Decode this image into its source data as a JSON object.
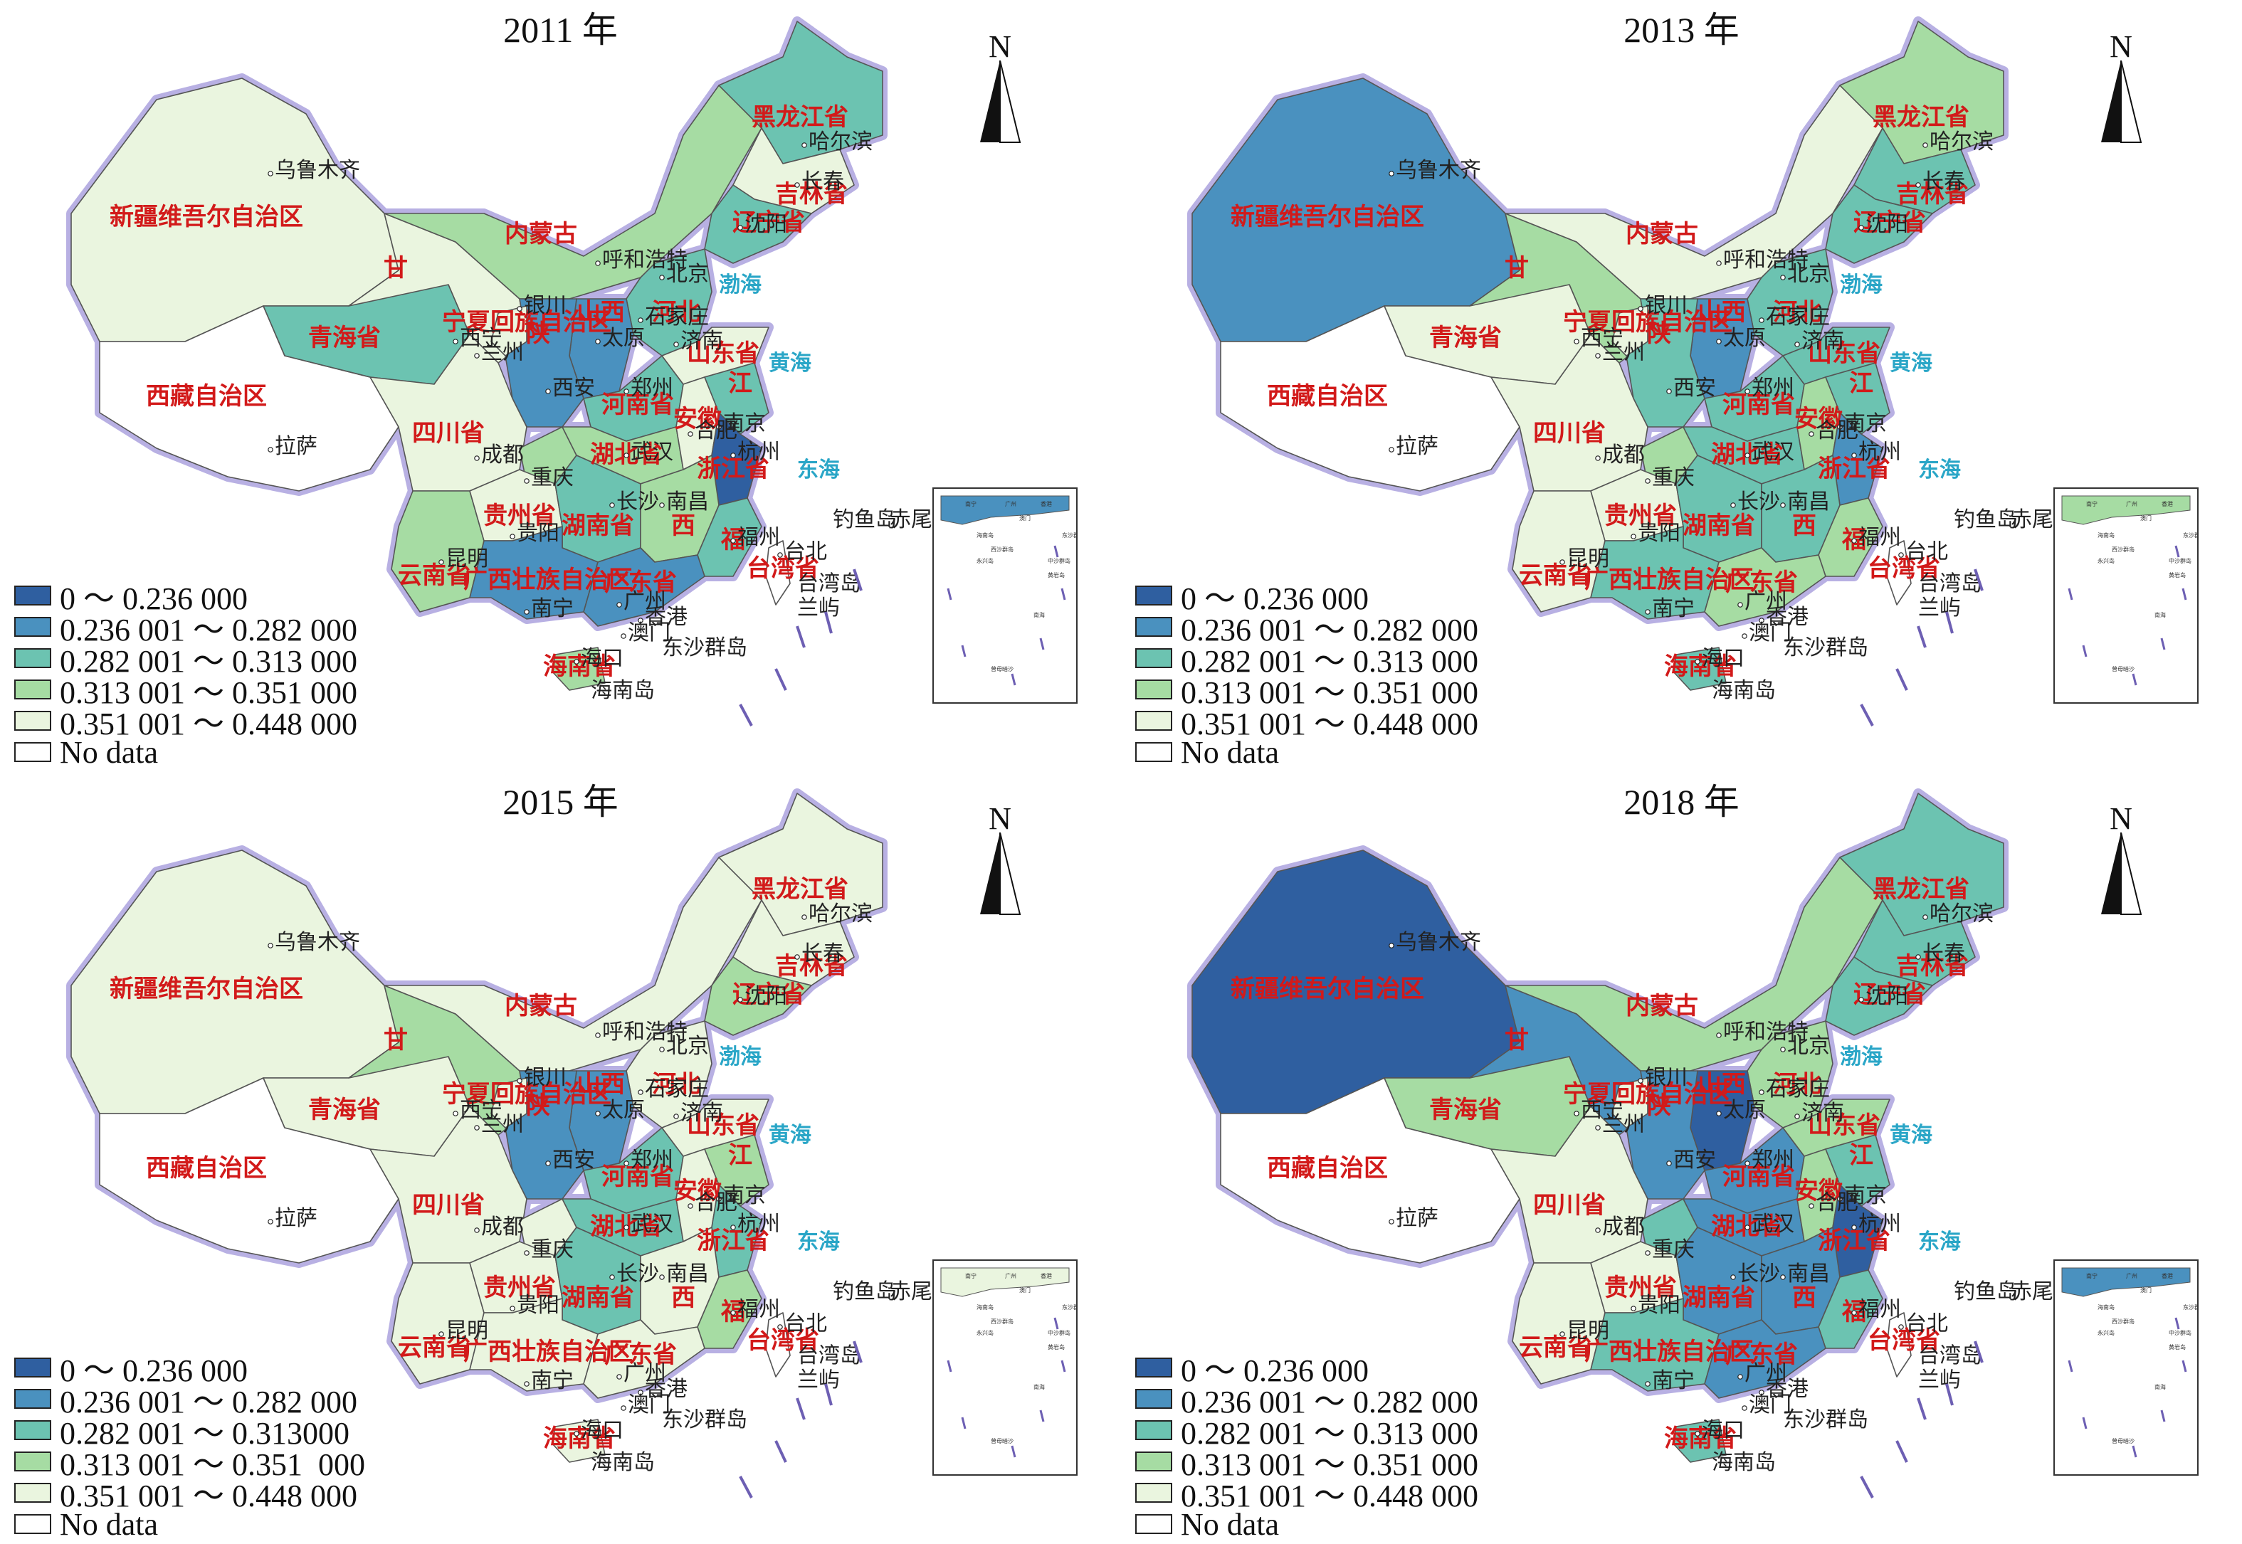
{
  "colors": {
    "c1": "#2f5fa0",
    "c2": "#4a91bf",
    "c3": "#6cc3b1",
    "c4": "#a6dca3",
    "c5": "#eaf5df",
    "nodata": "#ffffff",
    "border": "#6d5fb3",
    "sea": "#2aa6c7",
    "label": "#d21a1a"
  },
  "north_label": "N",
  "panels": [
    {
      "title": "2011 年",
      "legend": [
        {
          "class": "c1",
          "label": "0 ～ 0.236 000"
        },
        {
          "class": "c2",
          "label": "0.236 001 ～ 0.282 000"
        },
        {
          "class": "c3",
          "label": "0.282 001 ～ 0.313 000"
        },
        {
          "class": "c4",
          "label": "0.313 001 ～ 0.351 000"
        },
        {
          "class": "c5",
          "label": "0.351 001 ～ 0.448 000"
        },
        {
          "class": "nodata",
          "label": "No data"
        }
      ],
      "regions": {
        "xinjiang": "c5",
        "xizang": "nodata",
        "qinghai": "c3",
        "gansu": "c5",
        "neimenggu": "c4",
        "heilongjiang": "c3",
        "jilin": "c5",
        "liaoning": "c3",
        "beijing": "c1",
        "hebei": "c3",
        "shanxi": "c2",
        "shaanxi": "c2",
        "ningxia": "c5",
        "henan": "c3",
        "shandong": "c5",
        "sichuan": "c5",
        "chongqing": "c4",
        "hubei": "c4",
        "anhui": "c5",
        "jiangsu": "c3",
        "zhejiang": "c1",
        "yunnan": "c4",
        "guizhou": "c5",
        "hunan": "c3",
        "jiangxi": "c4",
        "fujian": "c3",
        "guangxi": "c2",
        "guangdong": "c2",
        "hainan": "c4",
        "taiwan": "nodata"
      }
    },
    {
      "title": "2013 年",
      "legend": [
        {
          "class": "c1",
          "label": "0 ～ 0.236 000"
        },
        {
          "class": "c2",
          "label": "0.236 001 ～ 0.282 000"
        },
        {
          "class": "c3",
          "label": "0.282 001 ～ 0.313 000"
        },
        {
          "class": "c4",
          "label": "0.313 001 ～ 0.351 000"
        },
        {
          "class": "c5",
          "label": "0.351 001 ～ 0.448 000"
        },
        {
          "class": "nodata",
          "label": "No data"
        }
      ],
      "regions": {
        "xinjiang": "c2",
        "xizang": "nodata",
        "qinghai": "c5",
        "gansu": "c4",
        "neimenggu": "c5",
        "heilongjiang": "c4",
        "jilin": "c3",
        "liaoning": "c3",
        "beijing": "c1",
        "hebei": "c3",
        "shanxi": "c2",
        "shaanxi": "c3",
        "ningxia": "c5",
        "henan": "c3",
        "shandong": "c3",
        "sichuan": "c5",
        "chongqing": "c4",
        "hubei": "c3",
        "anhui": "c4",
        "jiangsu": "c3",
        "zhejiang": "c2",
        "yunnan": "c5",
        "guizhou": "c5",
        "hunan": "c3",
        "jiangxi": "c3",
        "fujian": "c4",
        "guangxi": "c3",
        "guangdong": "c4",
        "hainan": "c3",
        "taiwan": "nodata"
      }
    },
    {
      "title": "2015 年",
      "legend": [
        {
          "class": "c1",
          "label": "0 ～ 0.236 000"
        },
        {
          "class": "c2",
          "label": "0.236 001 ～ 0.282 000"
        },
        {
          "class": "c3",
          "label": "0.282 001 ～ 0.313000"
        },
        {
          "class": "c4",
          "label": "0.313 001 ～ 0.351  000"
        },
        {
          "class": "c5",
          "label": "0.351 001 ～ 0.448 000"
        },
        {
          "class": "nodata",
          "label": "No data"
        }
      ],
      "regions": {
        "xinjiang": "c5",
        "xizang": "nodata",
        "qinghai": "c5",
        "gansu": "c4",
        "neimenggu": "c5",
        "heilongjiang": "c5",
        "jilin": "c5",
        "liaoning": "c4",
        "beijing": "c1",
        "hebei": "c5",
        "shanxi": "c2",
        "shaanxi": "c2",
        "ningxia": "c5",
        "henan": "c3",
        "shandong": "c5",
        "sichuan": "c5",
        "chongqing": "c5",
        "hubei": "c3",
        "anhui": "c5",
        "jiangsu": "c4",
        "zhejiang": "c3",
        "yunnan": "c5",
        "guizhou": "c5",
        "hunan": "c3",
        "jiangxi": "c5",
        "fujian": "c4",
        "guangxi": "c5",
        "guangdong": "c5",
        "hainan": "c5",
        "taiwan": "nodata"
      }
    },
    {
      "title": "2018 年",
      "legend": [
        {
          "class": "c1",
          "label": "0 ～ 0.236 000"
        },
        {
          "class": "c2",
          "label": "0.236 001 ～ 0.282 000"
        },
        {
          "class": "c3",
          "label": "0.282 001 ～ 0.313 000"
        },
        {
          "class": "c4",
          "label": "0.313 001 ～ 0.351 000"
        },
        {
          "class": "c5",
          "label": "0.351 001 ～ 0.448 000"
        },
        {
          "class": "nodata",
          "label": "No data"
        }
      ],
      "regions": {
        "xinjiang": "c1",
        "xizang": "nodata",
        "qinghai": "c4",
        "gansu": "c2",
        "neimenggu": "c4",
        "heilongjiang": "c3",
        "jilin": "c3",
        "liaoning": "c3",
        "beijing": "c1",
        "hebei": "c4",
        "shanxi": "c1",
        "shaanxi": "c2",
        "ningxia": "c5",
        "henan": "c2",
        "shandong": "c4",
        "sichuan": "c5",
        "chongqing": "c3",
        "hubei": "c2",
        "anhui": "c4",
        "jiangsu": "c3",
        "zhejiang": "c1",
        "yunnan": "c5",
        "guizhou": "c5",
        "hunan": "c2",
        "jiangxi": "c2",
        "fujian": "c3",
        "guangxi": "c3",
        "guangdong": "c2",
        "hainan": "c3",
        "taiwan": "nodata"
      }
    }
  ],
  "province_labels": {
    "xinjiang": "新疆维吾尔自治区",
    "xizang": "西藏自治区",
    "qinghai": "青海省",
    "gansu": "甘",
    "neimenggu": "内蒙古",
    "heilongjiang": "黑龙江省",
    "jilin": "吉林省",
    "liaoning": "辽宁省",
    "shaanxi": "陕",
    "shanxi": "山西",
    "henan": "河南省",
    "shandong": "山东省",
    "sichuan": "四川省",
    "hubei": "湖北省",
    "anhui": "安徽",
    "jiangsu": "江",
    "zhejiang": "浙江省",
    "yunnan": "云南省",
    "guizhou": "贵州省",
    "hunan": "湖南省",
    "jiangxi": "西",
    "fujian": "福",
    "guangxi": "广西壮族自治区",
    "guangdong": "广东省",
    "hainan": "海南省",
    "taiwan": "台湾省",
    "hebei": "河北",
    "ningxia": "宁夏回族自治区"
  },
  "cities": [
    {
      "name": "乌鲁木齐"
    },
    {
      "name": "哈尔滨"
    },
    {
      "name": "长春"
    },
    {
      "name": "沈阳"
    },
    {
      "name": "呼和浩特"
    },
    {
      "name": "北京"
    },
    {
      "name": "石家庄"
    },
    {
      "name": "太原"
    },
    {
      "name": "银川"
    },
    {
      "name": "西宁"
    },
    {
      "name": "兰州"
    },
    {
      "name": "西安"
    },
    {
      "name": "郑州"
    },
    {
      "name": "济南"
    },
    {
      "name": "南京"
    },
    {
      "name": "合肥"
    },
    {
      "name": "武汉"
    },
    {
      "name": "成都"
    },
    {
      "name": "重庆"
    },
    {
      "name": "拉萨"
    },
    {
      "name": "长沙"
    },
    {
      "name": "南昌"
    },
    {
      "name": "杭州"
    },
    {
      "name": "福州"
    },
    {
      "name": "贵阳"
    },
    {
      "name": "昆明"
    },
    {
      "name": "南宁"
    },
    {
      "name": "广州"
    },
    {
      "name": "香港"
    },
    {
      "name": "澳门"
    },
    {
      "name": "海口"
    },
    {
      "name": "台北"
    }
  ],
  "seas_and_islands": [
    "渤海",
    "黄海",
    "东海",
    "钓鱼岛",
    "赤尾屿",
    "台湾岛",
    "东沙群岛",
    "海南岛",
    "兰屿"
  ],
  "inset_labels": [
    "南宁",
    "广州",
    "香港",
    "澳门",
    "海南岛",
    "东沙群岛",
    "西沙群岛",
    "永兴岛",
    "中沙群岛",
    "黄岩岛",
    "南海",
    "曾母暗沙"
  ]
}
